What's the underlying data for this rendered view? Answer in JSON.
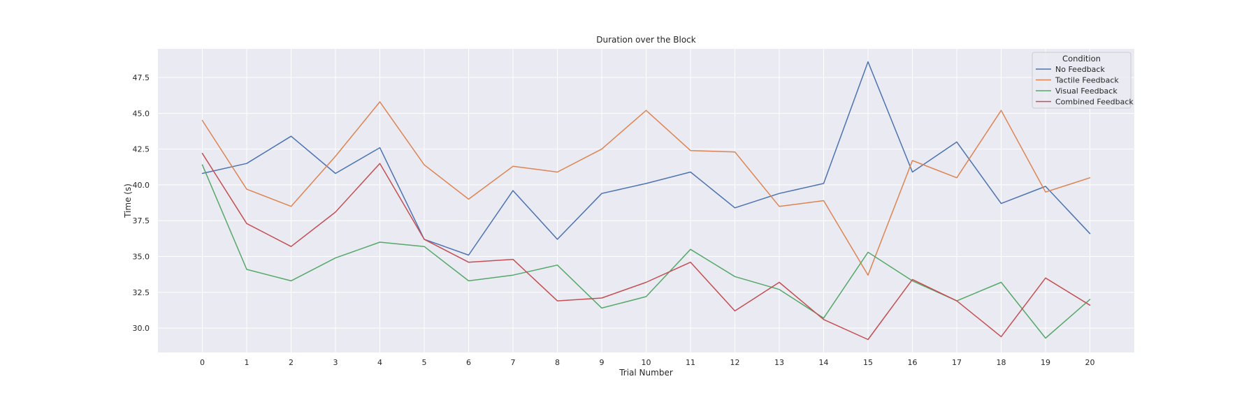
{
  "chart_data": {
    "type": "line",
    "title": "Duration over the Block",
    "xlabel": "Trial Number",
    "ylabel": "Time (s)",
    "x": [
      0,
      1,
      2,
      3,
      4,
      5,
      6,
      7,
      8,
      9,
      10,
      11,
      12,
      13,
      14,
      15,
      16,
      17,
      18,
      19,
      20
    ],
    "x_ticks": [
      "0",
      "1",
      "2",
      "3",
      "4",
      "5",
      "6",
      "7",
      "8",
      "9",
      "10",
      "11",
      "12",
      "13",
      "14",
      "15",
      "16",
      "17",
      "18",
      "19",
      "20"
    ],
    "xlim": [
      -1,
      21
    ],
    "ylim": [
      28.3,
      49.5
    ],
    "y_ticks": [
      {
        "value": 30.0,
        "label": "30.0"
      },
      {
        "value": 32.5,
        "label": "32.5"
      },
      {
        "value": 35.0,
        "label": "35.0"
      },
      {
        "value": 37.5,
        "label": "37.5"
      },
      {
        "value": 40.0,
        "label": "40.0"
      },
      {
        "value": 42.5,
        "label": "42.5"
      },
      {
        "value": 45.0,
        "label": "45.0"
      },
      {
        "value": 47.5,
        "label": "47.5"
      }
    ],
    "grid": true,
    "background": "#eaeaf2",
    "legend": {
      "title": "Condition",
      "position": "top-right"
    },
    "series": [
      {
        "name": "No Feedback",
        "color": "#4c72b0",
        "values": [
          40.8,
          41.5,
          43.4,
          40.8,
          42.6,
          36.2,
          35.1,
          39.6,
          36.2,
          39.4,
          40.1,
          40.9,
          38.4,
          39.4,
          40.1,
          48.6,
          40.9,
          43.0,
          38.7,
          39.9,
          36.6
        ]
      },
      {
        "name": "Tactile Feedback",
        "color": "#dd8452",
        "values": [
          44.5,
          39.7,
          38.5,
          42.0,
          45.8,
          41.4,
          39.0,
          41.3,
          40.9,
          42.5,
          45.2,
          42.4,
          42.3,
          38.5,
          38.9,
          33.7,
          41.7,
          40.5,
          45.2,
          39.5,
          40.5
        ]
      },
      {
        "name": "Visual Feedback",
        "color": "#55a868",
        "values": [
          41.4,
          34.1,
          33.3,
          34.9,
          36.0,
          35.7,
          33.3,
          33.7,
          34.4,
          31.4,
          32.2,
          35.5,
          33.6,
          32.7,
          30.7,
          35.3,
          33.3,
          31.9,
          33.2,
          29.3,
          32.0
        ]
      },
      {
        "name": "Combined Feedback",
        "color": "#c44e52",
        "values": [
          42.2,
          37.3,
          35.7,
          38.1,
          41.5,
          36.2,
          34.6,
          34.8,
          31.9,
          32.1,
          33.2,
          34.6,
          31.2,
          33.2,
          30.6,
          29.2,
          33.4,
          31.9,
          29.4,
          33.5,
          31.6
        ]
      }
    ]
  }
}
